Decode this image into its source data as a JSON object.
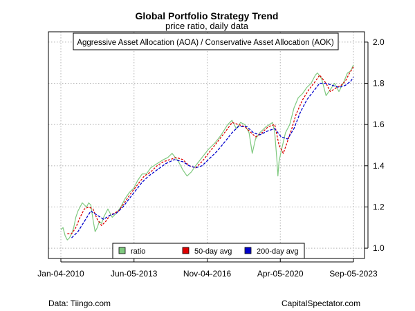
{
  "footer": {
    "source": "Data: Tiingo.com",
    "site": "CapitalSpectator.com"
  },
  "chart_data": {
    "type": "line",
    "title": "Global Portfolio Strategy Trend",
    "subtitle": "price ratio, daily data",
    "annotation": "Aggressive Asset Allocation (AOA) / Conservative Asset Allocation (AOK)",
    "xlabel": "",
    "ylabel": "",
    "x_tick_labels": [
      "Jan-04-2010",
      "Jun-05-2013",
      "Nov-04-2016",
      "Apr-05-2020",
      "Sep-05-2023"
    ],
    "x_range_years": [
      2010.0,
      2023.68
    ],
    "ylim": [
      0.95,
      2.05
    ],
    "y_ticks": [
      "1.0",
      "1.2",
      "1.4",
      "1.6",
      "1.8",
      "2.0"
    ],
    "grid": true,
    "legend_position": "bottom",
    "series": [
      {
        "name": "ratio",
        "color": "#7fc97f",
        "x": [
          2010.0,
          2010.1,
          2010.2,
          2010.3,
          2010.4,
          2010.5,
          2010.6,
          2010.7,
          2010.8,
          2010.9,
          2011.0,
          2011.1,
          2011.2,
          2011.3,
          2011.4,
          2011.5,
          2011.6,
          2011.7,
          2011.8,
          2011.9,
          2012.0,
          2012.2,
          2012.4,
          2012.6,
          2012.8,
          2013.0,
          2013.2,
          2013.4,
          2013.6,
          2013.8,
          2014.0,
          2014.2,
          2014.5,
          2014.8,
          2015.0,
          2015.2,
          2015.5,
          2015.7,
          2015.9,
          2016.1,
          2016.3,
          2016.6,
          2016.9,
          2017.2,
          2017.5,
          2017.8,
          2018.0,
          2018.2,
          2018.4,
          2018.6,
          2018.8,
          2018.95,
          2019.1,
          2019.3,
          2019.6,
          2019.9,
          2020.0,
          2020.1,
          2020.15,
          2020.2,
          2020.3,
          2020.5,
          2020.7,
          2020.9,
          2021.1,
          2021.3,
          2021.5,
          2021.7,
          2021.9,
          2022.0,
          2022.2,
          2022.4,
          2022.6,
          2022.8,
          2023.0,
          2023.2,
          2023.4,
          2023.55,
          2023.68
        ],
        "values": [
          1.09,
          1.1,
          1.06,
          1.04,
          1.05,
          1.07,
          1.1,
          1.15,
          1.18,
          1.2,
          1.22,
          1.21,
          1.2,
          1.22,
          1.21,
          1.14,
          1.08,
          1.1,
          1.13,
          1.12,
          1.15,
          1.19,
          1.15,
          1.17,
          1.2,
          1.24,
          1.27,
          1.29,
          1.33,
          1.36,
          1.36,
          1.39,
          1.41,
          1.43,
          1.44,
          1.46,
          1.42,
          1.38,
          1.35,
          1.37,
          1.4,
          1.44,
          1.48,
          1.51,
          1.55,
          1.6,
          1.62,
          1.58,
          1.61,
          1.6,
          1.56,
          1.46,
          1.53,
          1.56,
          1.59,
          1.61,
          1.56,
          1.43,
          1.35,
          1.42,
          1.47,
          1.56,
          1.6,
          1.68,
          1.73,
          1.75,
          1.78,
          1.8,
          1.84,
          1.85,
          1.82,
          1.74,
          1.77,
          1.8,
          1.76,
          1.8,
          1.85,
          1.86,
          1.89
        ]
      },
      {
        "name": "50-day avg",
        "color": "#dd0000",
        "x": [
          2010.3,
          2010.5,
          2010.7,
          2010.9,
          2011.1,
          2011.3,
          2011.5,
          2011.7,
          2011.9,
          2012.1,
          2012.3,
          2012.5,
          2012.7,
          2012.9,
          2013.1,
          2013.3,
          2013.6,
          2013.9,
          2014.2,
          2014.5,
          2014.8,
          2015.1,
          2015.4,
          2015.7,
          2016.0,
          2016.3,
          2016.6,
          2016.9,
          2017.2,
          2017.5,
          2017.8,
          2018.0,
          2018.3,
          2018.6,
          2018.9,
          2019.1,
          2019.4,
          2019.7,
          2020.0,
          2020.2,
          2020.4,
          2020.6,
          2020.8,
          2021.0,
          2021.3,
          2021.6,
          2021.9,
          2022.1,
          2022.4,
          2022.6,
          2022.9,
          2023.1,
          2023.3,
          2023.5,
          2023.68
        ],
        "values": [
          1.07,
          1.07,
          1.1,
          1.15,
          1.19,
          1.2,
          1.19,
          1.14,
          1.11,
          1.13,
          1.16,
          1.17,
          1.18,
          1.21,
          1.24,
          1.27,
          1.31,
          1.35,
          1.37,
          1.4,
          1.42,
          1.43,
          1.44,
          1.43,
          1.4,
          1.39,
          1.42,
          1.46,
          1.5,
          1.54,
          1.58,
          1.61,
          1.6,
          1.59,
          1.56,
          1.54,
          1.56,
          1.59,
          1.6,
          1.5,
          1.46,
          1.52,
          1.58,
          1.65,
          1.72,
          1.77,
          1.81,
          1.84,
          1.8,
          1.76,
          1.78,
          1.79,
          1.81,
          1.85,
          1.88
        ]
      },
      {
        "name": "200-day avg",
        "color": "#0000cc",
        "x": [
          2010.5,
          2010.8,
          2011.1,
          2011.4,
          2011.7,
          2012.0,
          2012.3,
          2012.6,
          2012.9,
          2013.2,
          2013.5,
          2013.8,
          2014.1,
          2014.5,
          2014.9,
          2015.3,
          2015.7,
          2016.0,
          2016.3,
          2016.6,
          2016.9,
          2017.3,
          2017.7,
          2018.0,
          2018.3,
          2018.7,
          2019.0,
          2019.3,
          2019.7,
          2020.0,
          2020.3,
          2020.6,
          2020.9,
          2021.2,
          2021.5,
          2021.8,
          2022.1,
          2022.4,
          2022.7,
          2023.0,
          2023.3,
          2023.55,
          2023.68
        ],
        "values": [
          1.05,
          1.08,
          1.13,
          1.18,
          1.16,
          1.14,
          1.16,
          1.17,
          1.2,
          1.24,
          1.28,
          1.32,
          1.35,
          1.38,
          1.41,
          1.43,
          1.42,
          1.4,
          1.39,
          1.4,
          1.43,
          1.47,
          1.52,
          1.56,
          1.59,
          1.59,
          1.56,
          1.55,
          1.57,
          1.58,
          1.54,
          1.53,
          1.58,
          1.66,
          1.72,
          1.76,
          1.8,
          1.8,
          1.79,
          1.78,
          1.79,
          1.81,
          1.83
        ]
      }
    ]
  }
}
